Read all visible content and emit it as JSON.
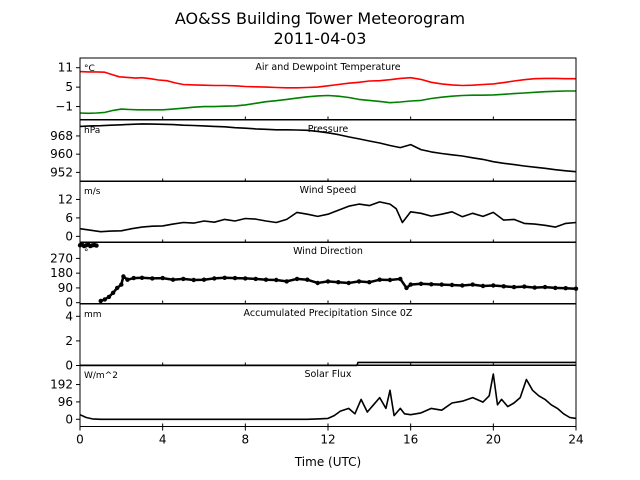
{
  "title_line1": "AO&SS Building Tower Meteorogram",
  "title_line2": "2011-04-03",
  "xlabel": "Time (UTC)",
  "x_ticks": [
    0,
    4,
    8,
    12,
    16,
    20,
    24
  ],
  "chart_data": [
    {
      "type": "line",
      "title": "Air and Dewpoint Temperature",
      "unit": "°C",
      "ylim": [
        -5,
        14
      ],
      "yticks": [
        -1,
        5,
        11
      ],
      "series": [
        {
          "color": "#ff0000",
          "x": [
            0,
            0.4,
            0.8,
            1.2,
            1.5,
            1.9,
            2.3,
            2.7,
            3.0,
            3.4,
            3.8,
            4.2,
            4.6,
            5,
            5.5,
            6,
            6.5,
            7,
            7.5,
            8,
            8.5,
            9,
            9.5,
            10,
            10.5,
            11,
            11.5,
            12,
            12.5,
            13,
            13.5,
            14,
            14.5,
            15,
            15.5,
            16,
            16.5,
            17,
            17.5,
            18,
            18.5,
            19,
            19.5,
            20,
            20.5,
            21,
            21.5,
            22,
            22.5,
            23,
            23.5,
            24
          ],
          "y": [
            9.8,
            9.7,
            9.7,
            9.6,
            9.0,
            8.2,
            8.0,
            7.8,
            7.9,
            7.6,
            7.2,
            7.0,
            6.3,
            5.8,
            5.7,
            5.6,
            5.5,
            5.5,
            5.4,
            5.2,
            5.1,
            5.0,
            4.9,
            4.8,
            4.8,
            4.9,
            5.0,
            5.4,
            5.8,
            6.2,
            6.5,
            6.9,
            7.0,
            7.3,
            7.7,
            7.9,
            7.4,
            6.5,
            6.0,
            5.7,
            5.5,
            5.6,
            5.8,
            6.0,
            6.4,
            6.9,
            7.3,
            7.6,
            7.7,
            7.7,
            7.6,
            7.6
          ]
        },
        {
          "color": "#008000",
          "x": [
            0,
            0.4,
            0.8,
            1.2,
            1.6,
            2.0,
            2.4,
            2.8,
            3.2,
            3.6,
            4,
            4.5,
            5,
            5.5,
            6,
            6.5,
            7,
            7.5,
            8,
            8.5,
            9,
            9.5,
            10,
            10.5,
            11,
            11.5,
            12,
            12.5,
            13,
            13.5,
            14,
            14.5,
            15,
            15.5,
            16,
            16.5,
            17,
            17.5,
            18,
            18.5,
            19,
            19.5,
            20,
            20.5,
            21,
            21.5,
            22,
            22.5,
            23,
            23.5,
            24
          ],
          "y": [
            -3.0,
            -3.1,
            -3.0,
            -2.8,
            -2.2,
            -1.8,
            -1.9,
            -2.0,
            -2.0,
            -2.0,
            -2.0,
            -1.8,
            -1.5,
            -1.2,
            -1.0,
            -1.0,
            -0.9,
            -0.8,
            -0.5,
            0.0,
            0.5,
            0.8,
            1.2,
            1.6,
            2.0,
            2.3,
            2.4,
            2.2,
            1.8,
            1.2,
            0.9,
            0.6,
            0.2,
            0.4,
            0.7,
            0.9,
            1.5,
            1.9,
            2.2,
            2.4,
            2.5,
            2.5,
            2.6,
            2.8,
            3.0,
            3.2,
            3.4,
            3.6,
            3.7,
            3.8,
            3.8
          ]
        }
      ]
    },
    {
      "type": "line",
      "title": "Pressure",
      "unit": "hPa",
      "ylim": [
        948,
        975
      ],
      "yticks": [
        952,
        960,
        968
      ],
      "series": [
        {
          "color": "#000000",
          "x": [
            0,
            0.5,
            1,
            1.5,
            2,
            2.5,
            3,
            3.5,
            4,
            4.5,
            5,
            5.5,
            6,
            6.5,
            7,
            7.5,
            8,
            8.5,
            9,
            9.5,
            10,
            10.5,
            11,
            11.5,
            12,
            12.5,
            13,
            13.5,
            14,
            14.5,
            15,
            15.5,
            16,
            16.5,
            17,
            17.5,
            18,
            18.5,
            19,
            19.5,
            20,
            20.5,
            21,
            21.5,
            22,
            22.5,
            23,
            23.5,
            24
          ],
          "y": [
            972.2,
            972.4,
            972.5,
            972.7,
            972.9,
            973.1,
            973.3,
            973.2,
            973.1,
            973.0,
            972.7,
            972.6,
            972.4,
            972.2,
            972.0,
            971.6,
            971.4,
            971.1,
            970.9,
            970.7,
            970.7,
            970.6,
            970.5,
            970.0,
            969.4,
            968.6,
            967.6,
            966.7,
            965.8,
            964.9,
            963.8,
            962.9,
            964.2,
            962.0,
            961.0,
            960.3,
            959.7,
            959.2,
            958.4,
            957.7,
            956.7,
            956.0,
            955.4,
            954.8,
            954.3,
            953.8,
            953.2,
            952.7,
            952.3
          ]
        }
      ]
    },
    {
      "type": "line",
      "title": "Wind Speed",
      "unit": "m/s",
      "ylim": [
        -2,
        18
      ],
      "yticks": [
        0,
        6,
        12
      ],
      "series": [
        {
          "color": "#000000",
          "x": [
            0,
            0.5,
            1,
            1.5,
            2,
            2.5,
            3,
            3.5,
            4,
            4.5,
            5,
            5.5,
            6,
            6.5,
            7,
            7.5,
            8,
            8.5,
            9,
            9.5,
            10,
            10.5,
            11,
            11.5,
            12,
            12.5,
            13,
            13.5,
            14,
            14.5,
            15,
            15.3,
            15.6,
            16,
            16.5,
            17,
            17.5,
            18,
            18.5,
            19,
            19.5,
            20,
            20.5,
            21,
            21.5,
            22,
            22.5,
            23,
            23.5,
            24
          ],
          "y": [
            2.5,
            2.0,
            1.5,
            1.7,
            1.8,
            2.5,
            3.0,
            3.3,
            3.4,
            4.0,
            4.5,
            4.3,
            5.0,
            4.6,
            5.5,
            5.0,
            5.8,
            5.6,
            5.0,
            4.5,
            5.5,
            7.8,
            7.2,
            6.5,
            7.2,
            8.5,
            9.8,
            10.5,
            10.0,
            11.2,
            10.5,
            9.0,
            4.5,
            8.0,
            7.5,
            6.6,
            7.2,
            8.0,
            6.4,
            7.5,
            6.5,
            7.8,
            5.3,
            5.5,
            4.2,
            4.0,
            3.6,
            3.0,
            4.2,
            4.5
          ]
        }
      ]
    },
    {
      "type": "scatter",
      "title": "Wind Direction",
      "unit": "°",
      "ylim": [
        -5,
        370
      ],
      "yticks": [
        0,
        90,
        180,
        270
      ],
      "series": [
        {
          "color": "#000000",
          "x": [
            0,
            0.1,
            0.2,
            0.3,
            0.4,
            0.5,
            0.6,
            0.7,
            0.8,
            1.0,
            1.2,
            1.4,
            1.6,
            1.8,
            2.0,
            2.1,
            2.3,
            2.6,
            3.0,
            3.5,
            4,
            4.5,
            5,
            5.5,
            6,
            6.5,
            7,
            7.5,
            8,
            8.5,
            9,
            9.5,
            10,
            10.5,
            11,
            11.5,
            12,
            12.5,
            13,
            13.5,
            14,
            14.5,
            15,
            15.5,
            15.8,
            16,
            16.5,
            17,
            17.5,
            18,
            18.5,
            19,
            19.5,
            20,
            20.5,
            21,
            21.5,
            22,
            22.5,
            23,
            23.5,
            24
          ],
          "y": [
            350,
            355,
            345,
            350,
            355,
            345,
            350,
            352,
            348,
            10,
            20,
            35,
            60,
            90,
            110,
            160,
            140,
            150,
            152,
            148,
            150,
            140,
            145,
            138,
            140,
            148,
            152,
            150,
            148,
            145,
            140,
            138,
            130,
            145,
            140,
            120,
            130,
            125,
            120,
            130,
            125,
            140,
            138,
            145,
            90,
            110,
            115,
            112,
            110,
            108,
            105,
            110,
            102,
            105,
            100,
            95,
            98,
            92,
            95,
            90,
            88,
            85
          ]
        }
      ]
    },
    {
      "type": "line",
      "title": "Accumulated Precipitation Since 0Z",
      "unit": "mm",
      "ylim": [
        0,
        5
      ],
      "yticks": [
        0,
        2,
        4
      ],
      "series": [
        {
          "color": "#000000",
          "x": [
            0,
            13.4,
            13.45,
            24
          ],
          "y": [
            0,
            0,
            0.25,
            0.25
          ]
        }
      ]
    },
    {
      "type": "line",
      "title": "Solar Flux",
      "unit": "W/m^2",
      "ylim": [
        -40,
        300
      ],
      "yticks": [
        0,
        96,
        192
      ],
      "series": [
        {
          "color": "#000000",
          "x": [
            0,
            0.3,
            0.6,
            1,
            2,
            4,
            6,
            8,
            10,
            11,
            11.5,
            12,
            12.3,
            12.6,
            13,
            13.3,
            13.6,
            13.9,
            14.2,
            14.5,
            14.8,
            15.0,
            15.2,
            15.5,
            15.7,
            16.0,
            16.5,
            17,
            17.5,
            18,
            18.5,
            19,
            19.5,
            19.8,
            20.0,
            20.2,
            20.4,
            20.7,
            21.0,
            21.3,
            21.6,
            21.9,
            22.2,
            22.5,
            22.8,
            23.1,
            23.4,
            23.7,
            24
          ],
          "y": [
            25,
            10,
            2,
            0,
            0,
            0,
            0,
            0,
            0,
            0,
            2,
            5,
            20,
            45,
            60,
            30,
            110,
            40,
            80,
            120,
            60,
            160,
            20,
            60,
            30,
            25,
            35,
            60,
            50,
            90,
            100,
            120,
            95,
            130,
            250,
            80,
            110,
            70,
            90,
            120,
            220,
            160,
            130,
            110,
            80,
            60,
            30,
            10,
            5
          ]
        }
      ]
    }
  ]
}
